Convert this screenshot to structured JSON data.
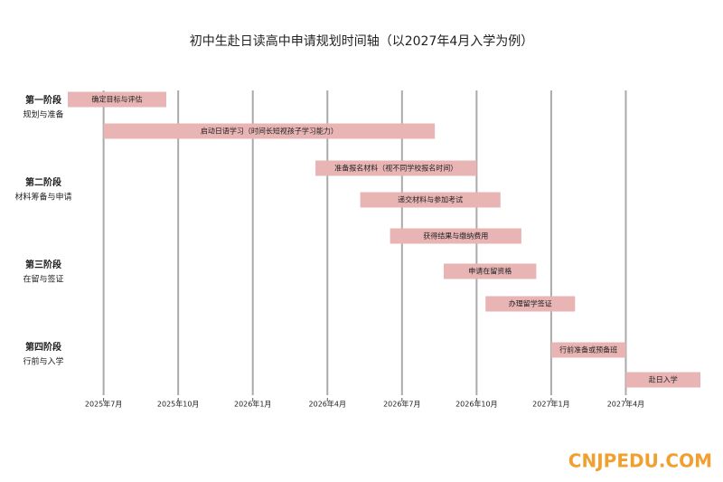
{
  "chart_data": {
    "type": "gantt",
    "title": "初中生赴日读高中申请规划时间轴（以2027年4月入学为例）",
    "color": "#e8b4b4",
    "xlim": [
      2025.38,
      2027.5
    ],
    "xticks": [
      {
        "value": 2025.5,
        "label": "2025年7月"
      },
      {
        "value": 2025.75,
        "label": "2025年10月"
      },
      {
        "value": 2026.0,
        "label": "2026年1月"
      },
      {
        "value": 2026.25,
        "label": "2026年4月"
      },
      {
        "value": 2026.5,
        "label": "2026年7月"
      },
      {
        "value": 2026.75,
        "label": "2026年10月"
      },
      {
        "value": 2027.0,
        "label": "2027年1月"
      },
      {
        "value": 2027.25,
        "label": "2027年4月"
      }
    ],
    "phases": [
      {
        "name": "第一阶段",
        "description": "规划与准备",
        "tasks": [
          {
            "name": "确定目标与评估",
            "start": 2025.38,
            "end": 2025.71
          },
          {
            "name": "启动日语学习（时间长短视孩子学习能力）",
            "start": 2025.5,
            "end": 2026.61
          }
        ]
      },
      {
        "name": "第二阶段",
        "description": "材料筹备与申请",
        "tasks": [
          {
            "name": "准备报名材料（视不同学校报名时间）",
            "start": 2026.21,
            "end": 2026.75
          },
          {
            "name": "递交材料与参加考试",
            "start": 2026.36,
            "end": 2026.83
          },
          {
            "name": "获得结果与缴纳费用",
            "start": 2026.46,
            "end": 2026.9
          }
        ]
      },
      {
        "name": "第三阶段",
        "description": "在留与签证",
        "tasks": [
          {
            "name": "申请在留资格",
            "start": 2026.64,
            "end": 2026.95
          },
          {
            "name": "办理留学签证",
            "start": 2026.78,
            "end": 2027.08
          }
        ]
      },
      {
        "name": "第四阶段",
        "description": "行前与入学",
        "tasks": [
          {
            "name": "行前准备或预备班",
            "start": 2027.0,
            "end": 2027.25
          },
          {
            "name": "赴日入学",
            "start": 2027.25,
            "end": 2027.5
          }
        ]
      }
    ],
    "watermark": "CNJPEDU.COM"
  }
}
